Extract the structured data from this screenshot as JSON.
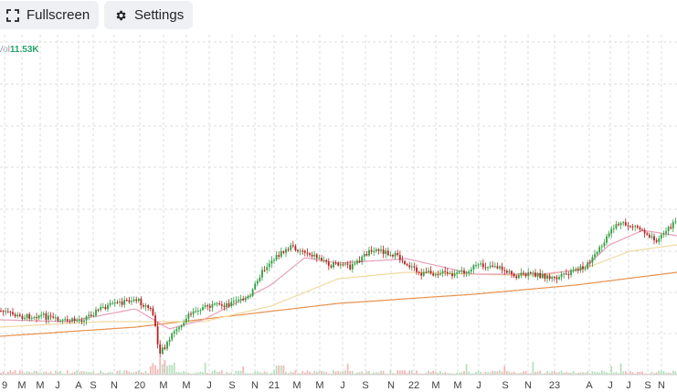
{
  "toolbar": {
    "fullscreen_label": "Fullscreen",
    "settings_label": "Settings",
    "fullscreen_icon": "fullscreen-icon",
    "settings_icon": "gear-icon"
  },
  "volume": {
    "prefix": "Vol",
    "value": "11.53K"
  },
  "colors": {
    "up": "#2e9e3e",
    "down": "#b22222",
    "ma_fast": "#e7a0b8",
    "ma_mid": "#f1d9a0",
    "ma_slow": "#e8914d",
    "grid": "#dcdcdc",
    "vol_up": "#b9e0bf",
    "vol_down": "#f3b8b8"
  },
  "chart_data": {
    "type": "candlestick",
    "x_ticks": [
      "9",
      "M",
      "M",
      "J",
      "A",
      "S",
      "N",
      "20",
      "M",
      "M",
      "J",
      "S",
      "N",
      "21",
      "M",
      "M",
      "J",
      "S",
      "N",
      "22",
      "M",
      "M",
      "J",
      "S",
      "N",
      "23",
      "A",
      "J",
      "J",
      "S",
      "N"
    ],
    "price_path": [
      [
        0,
        340
      ],
      [
        0.03,
        347
      ],
      [
        0.06,
        345
      ],
      [
        0.09,
        352
      ],
      [
        0.12,
        350
      ],
      [
        0.15,
        337
      ],
      [
        0.2,
        327
      ],
      [
        0.225,
        340
      ],
      [
        0.235,
        385
      ],
      [
        0.245,
        378
      ],
      [
        0.26,
        360
      ],
      [
        0.29,
        338
      ],
      [
        0.33,
        334
      ],
      [
        0.37,
        325
      ],
      [
        0.38,
        305
      ],
      [
        0.4,
        285
      ],
      [
        0.43,
        270
      ],
      [
        0.46,
        278
      ],
      [
        0.49,
        290
      ],
      [
        0.52,
        292
      ],
      [
        0.55,
        272
      ],
      [
        0.58,
        278
      ],
      [
        0.6,
        288
      ],
      [
        0.62,
        300
      ],
      [
        0.65,
        298
      ],
      [
        0.67,
        302
      ],
      [
        0.7,
        292
      ],
      [
        0.73,
        290
      ],
      [
        0.76,
        302
      ],
      [
        0.79,
        300
      ],
      [
        0.82,
        305
      ],
      [
        0.84,
        300
      ],
      [
        0.87,
        289
      ],
      [
        0.89,
        268
      ],
      [
        0.91,
        245
      ],
      [
        0.94,
        248
      ],
      [
        0.97,
        262
      ],
      [
        1.0,
        242
      ]
    ],
    "ma_slow_path": [
      [
        0,
        368
      ],
      [
        0.2,
        358
      ],
      [
        0.35,
        345
      ],
      [
        0.5,
        332
      ],
      [
        0.7,
        322
      ],
      [
        0.85,
        312
      ],
      [
        1.0,
        298
      ]
    ],
    "ma_mid_path": [
      [
        0,
        358
      ],
      [
        0.15,
        352
      ],
      [
        0.3,
        352
      ],
      [
        0.4,
        335
      ],
      [
        0.5,
        305
      ],
      [
        0.6,
        298
      ],
      [
        0.7,
        300
      ],
      [
        0.8,
        302
      ],
      [
        0.87,
        292
      ],
      [
        0.93,
        275
      ],
      [
        1.0,
        268
      ]
    ],
    "ma_fast_path": [
      [
        0,
        350
      ],
      [
        0.1,
        352
      ],
      [
        0.2,
        338
      ],
      [
        0.25,
        360
      ],
      [
        0.3,
        350
      ],
      [
        0.4,
        312
      ],
      [
        0.45,
        282
      ],
      [
        0.5,
        288
      ],
      [
        0.6,
        283
      ],
      [
        0.7,
        300
      ],
      [
        0.8,
        300
      ],
      [
        0.86,
        295
      ],
      [
        0.9,
        268
      ],
      [
        0.95,
        252
      ],
      [
        1.0,
        258
      ]
    ],
    "ylim": [
      240,
      410
    ]
  }
}
